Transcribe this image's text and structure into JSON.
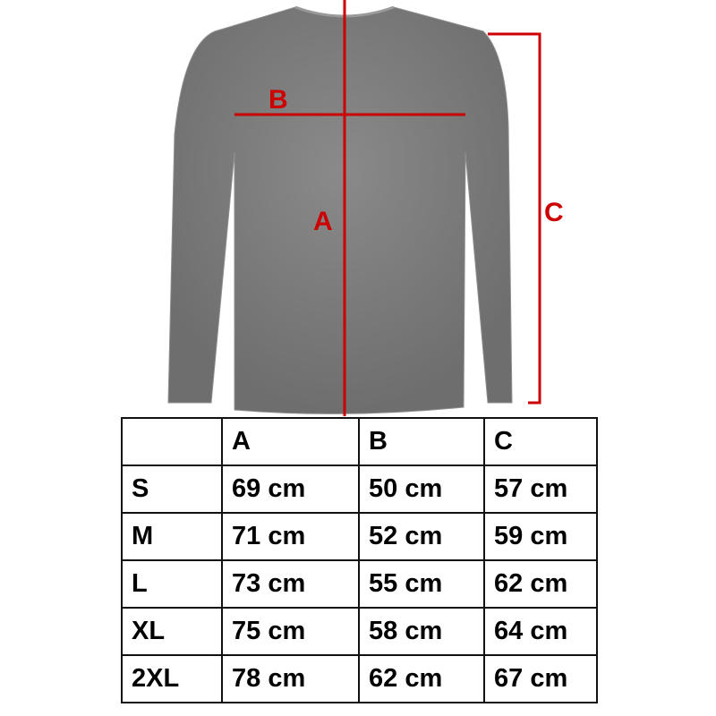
{
  "diagram": {
    "labels": {
      "a": "A",
      "b": "B",
      "c": "C"
    },
    "colors": {
      "measure_lines": "#cc0000",
      "shirt": "#7d7d7d"
    }
  },
  "table": {
    "headers": [
      "",
      "A",
      "B",
      "C"
    ],
    "rows": [
      [
        "S",
        "69 cm",
        "50 cm",
        "57 cm"
      ],
      [
        "M",
        "71 cm",
        "52 cm",
        "59 cm"
      ],
      [
        "L",
        "73 cm",
        "55 cm",
        "62 cm"
      ],
      [
        "XL",
        "75 cm",
        "58 cm",
        "64 cm"
      ],
      [
        "2XL",
        "78 cm",
        "62 cm",
        "67 cm"
      ]
    ]
  }
}
